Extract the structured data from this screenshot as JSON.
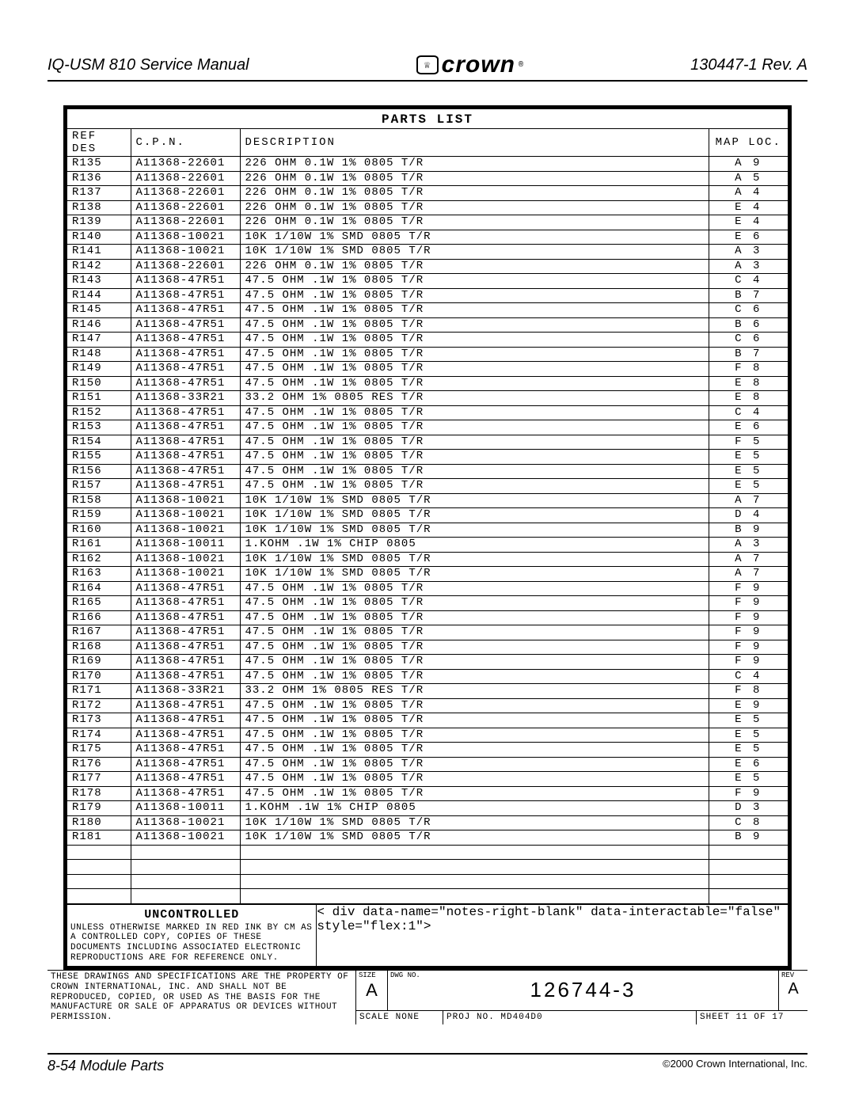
{
  "header": {
    "left": "IQ-USM 810 Service Manual",
    "logo": "crown",
    "right": "130447-1 Rev. A"
  },
  "parts_list": {
    "title": "PARTS LIST",
    "columns": [
      "REF DES",
      "C.P.N.",
      "DESCRIPTION",
      "MAP LOC."
    ],
    "rows": [
      [
        "R135",
        "A11368-22601",
        "226 OHM 0.1W 1% 0805 T/R",
        "A 9"
      ],
      [
        "R136",
        "A11368-22601",
        "226 OHM 0.1W 1% 0805 T/R",
        "A 5"
      ],
      [
        "R137",
        "A11368-22601",
        "226 OHM 0.1W 1% 0805 T/R",
        "A 4"
      ],
      [
        "R138",
        "A11368-22601",
        "226 OHM 0.1W 1% 0805 T/R",
        "E 4"
      ],
      [
        "R139",
        "A11368-22601",
        "226 OHM 0.1W 1% 0805 T/R",
        "E 4"
      ],
      [
        "R140",
        "A11368-10021",
        "10K 1/10W 1% SMD 0805 T/R",
        "E 6"
      ],
      [
        "R141",
        "A11368-10021",
        "10K 1/10W 1% SMD 0805 T/R",
        "A 3"
      ],
      [
        "R142",
        "A11368-22601",
        "226 OHM 0.1W 1% 0805 T/R",
        "A 3"
      ],
      [
        "R143",
        "A11368-47R51",
        "47.5 OHM .1W 1% 0805 T/R",
        "C 4"
      ],
      [
        "R144",
        "A11368-47R51",
        "47.5 OHM .1W 1% 0805 T/R",
        "B 7"
      ],
      [
        "R145",
        "A11368-47R51",
        "47.5 OHM .1W 1% 0805 T/R",
        "C 6"
      ],
      [
        "R146",
        "A11368-47R51",
        "47.5 OHM .1W 1% 0805 T/R",
        "B 6"
      ],
      [
        "R147",
        "A11368-47R51",
        "47.5 OHM .1W 1% 0805 T/R",
        "C 6"
      ],
      [
        "R148",
        "A11368-47R51",
        "47.5 OHM .1W 1% 0805 T/R",
        "B 7"
      ],
      [
        "R149",
        "A11368-47R51",
        "47.5 OHM .1W 1% 0805 T/R",
        "F 8"
      ],
      [
        "R150",
        "A11368-47R51",
        "47.5 OHM .1W 1% 0805 T/R",
        "E 8"
      ],
      [
        "R151",
        "A11368-33R21",
        "33.2 OHM 1% 0805 RES T/R",
        "E 8"
      ],
      [
        "R152",
        "A11368-47R51",
        "47.5 OHM .1W 1% 0805 T/R",
        "C 4"
      ],
      [
        "R153",
        "A11368-47R51",
        "47.5 OHM .1W 1% 0805 T/R",
        "E 6"
      ],
      [
        "R154",
        "A11368-47R51",
        "47.5 OHM .1W 1% 0805 T/R",
        "F 5"
      ],
      [
        "R155",
        "A11368-47R51",
        "47.5 OHM .1W 1% 0805 T/R",
        "E 5"
      ],
      [
        "R156",
        "A11368-47R51",
        "47.5 OHM .1W 1% 0805 T/R",
        "E 5"
      ],
      [
        "R157",
        "A11368-47R51",
        "47.5 OHM .1W 1% 0805 T/R",
        "E 5"
      ],
      [
        "R158",
        "A11368-10021",
        "10K 1/10W 1% SMD 0805 T/R",
        "A 7"
      ],
      [
        "R159",
        "A11368-10021",
        "10K 1/10W 1% SMD 0805 T/R",
        "D 4"
      ],
      [
        "R160",
        "A11368-10021",
        "10K 1/10W 1% SMD 0805 T/R",
        "B 9"
      ],
      [
        "R161",
        "A11368-10011",
        "1.KOHM .1W 1% CHIP 0805",
        "A 3"
      ],
      [
        "R162",
        "A11368-10021",
        "10K 1/10W 1% SMD 0805 T/R",
        "A 7"
      ],
      [
        "R163",
        "A11368-10021",
        "10K 1/10W 1% SMD 0805 T/R",
        "A 7"
      ],
      [
        "R164",
        "A11368-47R51",
        "47.5 OHM .1W 1% 0805 T/R",
        "F 9"
      ],
      [
        "R165",
        "A11368-47R51",
        "47.5 OHM .1W 1% 0805 T/R",
        "F 9"
      ],
      [
        "R166",
        "A11368-47R51",
        "47.5 OHM .1W 1% 0805 T/R",
        "F 9"
      ],
      [
        "R167",
        "A11368-47R51",
        "47.5 OHM .1W 1% 0805 T/R",
        "F 9"
      ],
      [
        "R168",
        "A11368-47R51",
        "47.5 OHM .1W 1% 0805 T/R",
        "F 9"
      ],
      [
        "R169",
        "A11368-47R51",
        "47.5 OHM .1W 1% 0805 T/R",
        "F 9"
      ],
      [
        "R170",
        "A11368-47R51",
        "47.5 OHM .1W 1% 0805 T/R",
        "C 4"
      ],
      [
        "R171",
        "A11368-33R21",
        "33.2 OHM 1% 0805 RES T/R",
        "F 8"
      ],
      [
        "R172",
        "A11368-47R51",
        "47.5 OHM .1W 1% 0805 T/R",
        "E 9"
      ],
      [
        "R173",
        "A11368-47R51",
        "47.5 OHM .1W 1% 0805 T/R",
        "E 5"
      ],
      [
        "R174",
        "A11368-47R51",
        "47.5 OHM .1W 1% 0805 T/R",
        "E 5"
      ],
      [
        "R175",
        "A11368-47R51",
        "47.5 OHM .1W 1% 0805 T/R",
        "E 5"
      ],
      [
        "R176",
        "A11368-47R51",
        "47.5 OHM .1W 1% 0805 T/R",
        "E 6"
      ],
      [
        "R177",
        "A11368-47R51",
        "47.5 OHM .1W 1% 0805 T/R",
        "E 5"
      ],
      [
        "R178",
        "A11368-47R51",
        "47.5 OHM .1W 1% 0805 T/R",
        "F 9"
      ],
      [
        "R179",
        "A11368-10011",
        "1.KOHM .1W 1% CHIP 0805",
        "D 3"
      ],
      [
        "R180",
        "A11368-10021",
        "10K 1/10W 1% SMD 0805 T/R",
        "C 8"
      ],
      [
        "R181",
        "A11368-10021",
        "10K 1/10W 1% SMD 0805 T/R",
        "B 9"
      ]
    ],
    "empty_rows": 4
  },
  "notes": {
    "uncontrolled": "UNCONTROLLED",
    "text1": "UNLESS OTHERWISE MARKED IN RED INK BY CM AS A CONTROLLED COPY, COPIES OF THESE DOCUMENTS INCLUDING ASSOCIATED ELECTRONIC REPRODUCTIONS ARE FOR REFERENCE ONLY.",
    "text2": "THESE DRAWINGS AND SPECIFICATIONS ARE THE PROPERTY OF CROWN INTERNATIONAL, INC. AND SHALL NOT BE REPRODUCED, COPIED, OR USED AS THE BASIS FOR THE MANUFACTURE OR SALE OF APPARATUS OR DEVICES WITHOUT PERMISSION."
  },
  "titleblock": {
    "size_label": "SIZE",
    "size": "A",
    "dwg_label": "DWG NO.",
    "dwg": "126744-3",
    "rev_label": "REV",
    "rev": "A",
    "scale": "SCALE  NONE",
    "proj": "PROJ NO.  MD404D0",
    "sheet": "SHEET 11 OF 17"
  },
  "footer": {
    "left": "8-54 Module Parts",
    "right": "©2000 Crown International, Inc."
  }
}
